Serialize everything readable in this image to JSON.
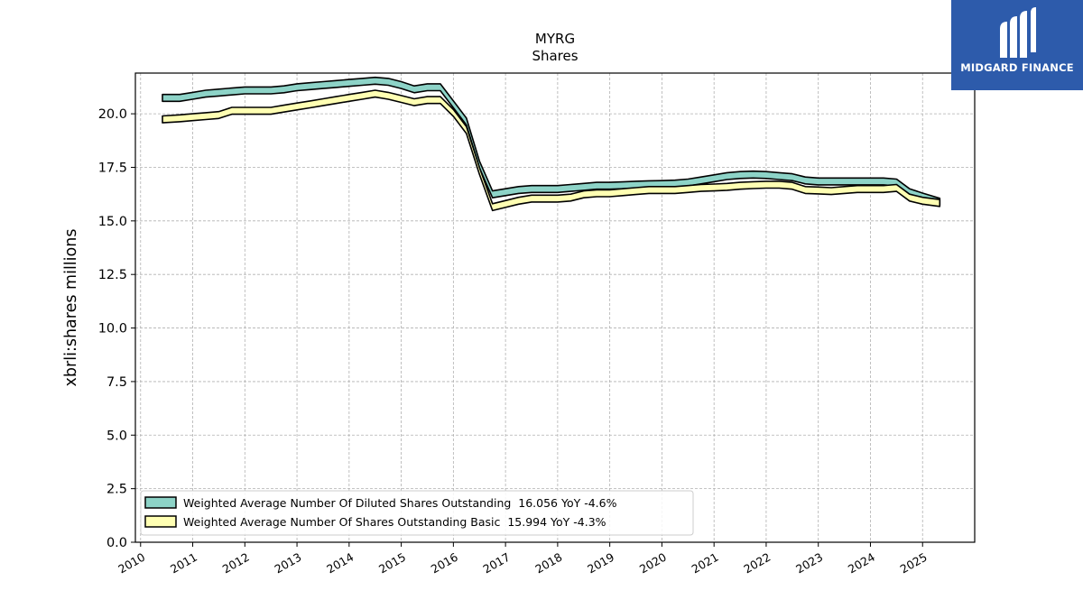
{
  "brand": {
    "name": "MIDGARD FINANCE",
    "color": "#2d5bab",
    "icon": "midgard-logo-icon"
  },
  "chart_data": {
    "type": "area",
    "title": "MYRG",
    "subtitle": "Shares",
    "xlabel": "",
    "ylabel": "xbrli:shares millions",
    "xlim": [
      2009.9,
      2026.0
    ],
    "ylim": [
      0,
      21.9
    ],
    "x_ticks": [
      "2010",
      "2011",
      "2012",
      "2013",
      "2014",
      "2015",
      "2016",
      "2017",
      "2018",
      "2019",
      "2020",
      "2021",
      "2022",
      "2023",
      "2024",
      "2025"
    ],
    "y_ticks": [
      "0.0",
      "2.5",
      "5.0",
      "7.5",
      "10.0",
      "12.5",
      "15.0",
      "17.5",
      "20.0"
    ],
    "grid": true,
    "legend_placement": "lower-left",
    "series": [
      {
        "name": "Weighted Average Number Of Diluted Shares Outstanding",
        "legend_label": "Weighted Average Number Of Diluted Shares Outstanding  16.056 YoY -4.6%",
        "color": "#8dd3c7",
        "x": [
          2010.42,
          2010.75,
          2011.0,
          2011.25,
          2011.5,
          2011.75,
          2012.0,
          2012.25,
          2012.5,
          2012.75,
          2013.0,
          2013.25,
          2013.5,
          2013.75,
          2014.0,
          2014.25,
          2014.5,
          2014.75,
          2015.0,
          2015.25,
          2015.5,
          2015.75,
          2016.0,
          2016.25,
          2016.5,
          2016.75,
          2017.0,
          2017.25,
          2017.5,
          2017.75,
          2018.0,
          2018.25,
          2018.5,
          2018.75,
          2019.0,
          2019.25,
          2019.5,
          2019.75,
          2020.0,
          2020.25,
          2020.5,
          2020.75,
          2021.0,
          2021.25,
          2021.5,
          2021.75,
          2022.0,
          2022.25,
          2022.5,
          2022.75,
          2023.0,
          2023.25,
          2023.5,
          2023.75,
          2024.0,
          2024.25,
          2024.5,
          2024.75,
          2025.0,
          2025.33
        ],
        "y": [
          20.9,
          20.9,
          21.0,
          21.1,
          21.15,
          21.2,
          21.25,
          21.25,
          21.25,
          21.3,
          21.4,
          21.45,
          21.5,
          21.55,
          21.6,
          21.65,
          21.7,
          21.65,
          21.5,
          21.3,
          21.4,
          21.4,
          20.6,
          19.8,
          17.8,
          16.4,
          16.5,
          16.6,
          16.65,
          16.65,
          16.65,
          16.7,
          16.75,
          16.8,
          16.8,
          16.82,
          16.85,
          16.87,
          16.88,
          16.9,
          16.95,
          17.05,
          17.15,
          17.25,
          17.3,
          17.32,
          17.3,
          17.25,
          17.2,
          17.05,
          17.0,
          17.0,
          17.0,
          17.0,
          17.0,
          17.0,
          16.95,
          16.5,
          16.3,
          16.056
        ]
      },
      {
        "name": "Weighted Average Number Of Shares Outstanding Basic",
        "legend_label": "Weighted Average Number Of Shares Outstanding Basic  15.994 YoY -4.3%",
        "color": "#ffffb3",
        "x": [
          2010.42,
          2010.75,
          2011.0,
          2011.25,
          2011.5,
          2011.75,
          2012.0,
          2012.25,
          2012.5,
          2012.75,
          2013.0,
          2013.25,
          2013.5,
          2013.75,
          2014.0,
          2014.25,
          2014.5,
          2014.75,
          2015.0,
          2015.25,
          2015.5,
          2015.75,
          2016.0,
          2016.25,
          2016.5,
          2016.75,
          2017.0,
          2017.25,
          2017.5,
          2017.75,
          2018.0,
          2018.25,
          2018.5,
          2018.75,
          2019.0,
          2019.25,
          2019.5,
          2019.75,
          2020.0,
          2020.25,
          2020.5,
          2020.75,
          2021.0,
          2021.25,
          2021.5,
          2021.75,
          2022.0,
          2022.25,
          2022.5,
          2022.75,
          2023.0,
          2023.25,
          2023.5,
          2023.75,
          2024.0,
          2024.25,
          2024.5,
          2024.75,
          2025.0,
          2025.33
        ],
        "y": [
          19.9,
          19.95,
          20.0,
          20.05,
          20.1,
          20.3,
          20.3,
          20.3,
          20.3,
          20.4,
          20.5,
          20.6,
          20.7,
          20.8,
          20.9,
          21.0,
          21.1,
          21.0,
          20.85,
          20.7,
          20.8,
          20.8,
          20.2,
          19.4,
          17.5,
          15.8,
          15.95,
          16.1,
          16.2,
          16.2,
          16.2,
          16.25,
          16.4,
          16.45,
          16.45,
          16.5,
          16.55,
          16.6,
          16.6,
          16.6,
          16.65,
          16.7,
          16.72,
          16.75,
          16.8,
          16.83,
          16.85,
          16.85,
          16.8,
          16.6,
          16.58,
          16.55,
          16.6,
          16.65,
          16.65,
          16.65,
          16.7,
          16.25,
          16.1,
          15.994
        ]
      }
    ]
  }
}
